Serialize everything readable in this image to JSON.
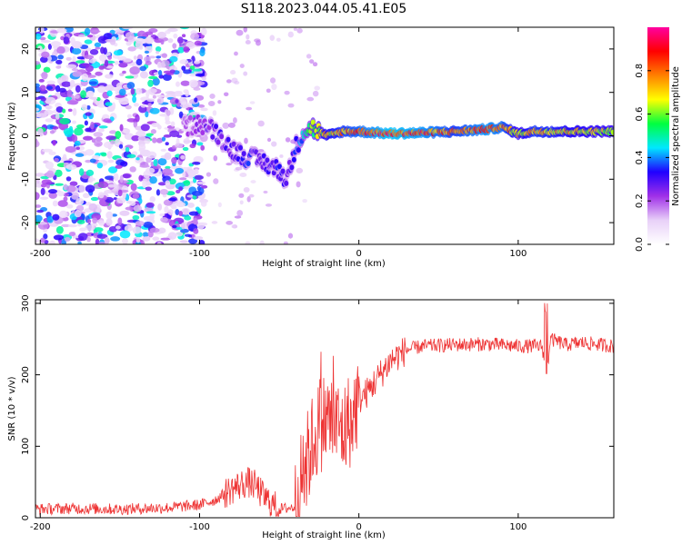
{
  "title": "S118.2023.044.05.41.E05",
  "chart_data": [
    {
      "type": "heatmap",
      "xlabel": "Height of straight line (km)",
      "ylabel": "Frequency (Hz)",
      "xlim": [
        -203,
        160
      ],
      "ylim": [
        -25,
        25
      ],
      "xticks": [
        -200,
        -100,
        0,
        100
      ],
      "yticks": [
        -20,
        -10,
        0,
        10,
        20
      ],
      "colorbar": {
        "label": "Normalized spectral amplitude",
        "range": [
          0,
          1
        ],
        "ticks": [
          "0.0",
          "0.2",
          "0.4",
          "0.6",
          "0.8"
        ],
        "colors": [
          "#ffffff",
          "#e8d0f8",
          "#a030e8",
          "#2000ff",
          "#00e8ff",
          "#00ff40",
          "#ffff00",
          "#ff8000",
          "#ff0000",
          "#ff00a0"
        ]
      },
      "noise_region_x": [
        -203,
        -97
      ],
      "ridge": {
        "x": [
          -110,
          -100,
          -90,
          -80,
          -70,
          -60,
          -50,
          -45,
          -40,
          -35,
          -30,
          -20,
          -10,
          0,
          20,
          40,
          60,
          80,
          90,
          100,
          110,
          130,
          160
        ],
        "freq": [
          2,
          3,
          1,
          -3,
          -5,
          -6,
          -8,
          -10,
          -3,
          1,
          2,
          0,
          1,
          1,
          0.5,
          0.7,
          1,
          1.5,
          2,
          0.5,
          1,
          1,
          1
        ],
        "amplitude": [
          0.2,
          0.25,
          0.3,
          0.3,
          0.35,
          0.3,
          0.35,
          0.3,
          0.35,
          0.45,
          0.6,
          0.75,
          0.8,
          0.85,
          0.95,
          0.9,
          0.8,
          0.9,
          0.85,
          0.7,
          0.8,
          0.75,
          0.7
        ]
      }
    },
    {
      "type": "line",
      "xlabel": "Height of straight line (km)",
      "ylabel": "SNR (10 * v/v)",
      "xlim": [
        -203,
        160
      ],
      "ylim": [
        0,
        305
      ],
      "xticks": [
        -200,
        -100,
        0,
        100
      ],
      "yticks": [
        0,
        100,
        200,
        300
      ],
      "series": [
        {
          "color": "#ee3333",
          "x": [
            -203,
            -180,
            -150,
            -120,
            -100,
            -90,
            -80,
            -75,
            -70,
            -65,
            -60,
            -55,
            -50,
            -40,
            -35,
            -30,
            -25,
            -20,
            -15,
            -10,
            -5,
            0,
            5,
            10,
            15,
            20,
            30,
            40,
            60,
            80,
            100,
            110,
            115,
            118,
            120,
            130,
            140,
            160
          ],
          "y": [
            12,
            13,
            12,
            14,
            18,
            25,
            40,
            45,
            50,
            45,
            30,
            20,
            12,
            15,
            60,
            100,
            130,
            140,
            130,
            120,
            140,
            165,
            175,
            190,
            205,
            220,
            235,
            240,
            242,
            243,
            240,
            240,
            240,
            200,
            250,
            242,
            245,
            240
          ]
        }
      ]
    }
  ]
}
